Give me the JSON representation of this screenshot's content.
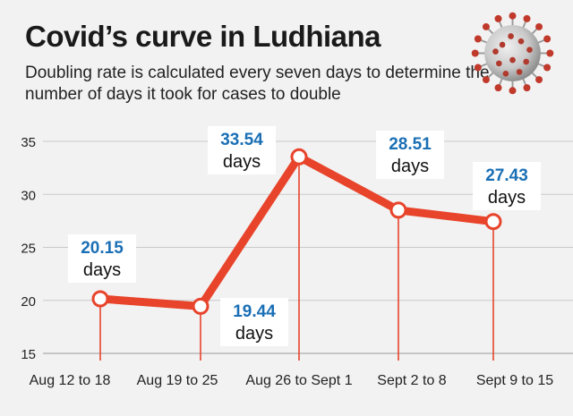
{
  "title": "Covid’s curve in Ludhiana",
  "subtitle": "Doubling rate is calculated every seven days to determine the number of days it took for cases to double",
  "icons": {
    "illustration": "coronavirus-icon"
  },
  "colors": {
    "line": "#e8442b",
    "value_label": "#1a6fb5",
    "marker_fill": "#ffffff",
    "background": "#f2f2f2"
  },
  "chart_data": {
    "type": "line",
    "title": "Covid’s curve in Ludhiana",
    "subtitle": "Doubling rate is calculated every seven days to determine the number of days it took for cases to double",
    "xlabel": "",
    "ylabel": "",
    "categories": [
      "Aug 12 to 18",
      "Aug 19 to 25",
      "Aug 26 to Sept 1",
      "Sept 2 to 8",
      "Sept 9 to 15"
    ],
    "values": [
      20.15,
      19.44,
      33.54,
      28.51,
      27.43
    ],
    "value_labels": [
      "20.15",
      "19.44",
      "33.54",
      "28.51",
      "27.43"
    ],
    "unit_label": "days",
    "yticks": [
      15,
      20,
      25,
      30,
      35
    ],
    "ylim": [
      15,
      35
    ],
    "grid": "horizontal",
    "legend": "none"
  }
}
